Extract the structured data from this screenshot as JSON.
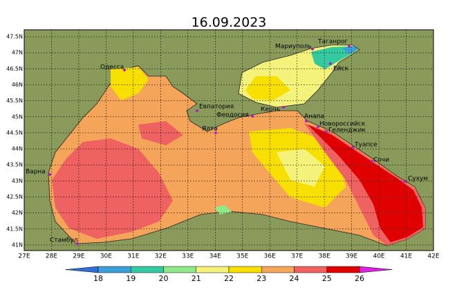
{
  "title": "16.09.2023",
  "lon_ticks": [
    {
      "value": 27,
      "label": "27E"
    },
    {
      "value": 28,
      "label": "28E"
    },
    {
      "value": 29,
      "label": "29E"
    },
    {
      "value": 30,
      "label": "30E"
    },
    {
      "value": 31,
      "label": "31E"
    },
    {
      "value": 32,
      "label": "32E"
    },
    {
      "value": 33,
      "label": "33E"
    },
    {
      "value": 34,
      "label": "34E"
    },
    {
      "value": 35,
      "label": "35E"
    },
    {
      "value": 36,
      "label": "36E"
    },
    {
      "value": 37,
      "label": "37E"
    },
    {
      "value": 38,
      "label": "38E"
    },
    {
      "value": 39,
      "label": "39E"
    },
    {
      "value": 40,
      "label": "40E"
    },
    {
      "value": 41,
      "label": "41E"
    },
    {
      "value": 42,
      "label": "42E"
    }
  ],
  "lat_ticks": [
    {
      "value": 41,
      "label": "41N"
    },
    {
      "value": 41.5,
      "label": "41.5N"
    },
    {
      "value": 42,
      "label": "42N"
    },
    {
      "value": 42.5,
      "label": "42.5N"
    },
    {
      "value": 43,
      "label": "43N"
    },
    {
      "value": 43.5,
      "label": "43.5N"
    },
    {
      "value": 44,
      "label": "44N"
    },
    {
      "value": 44.5,
      "label": "44.5N"
    },
    {
      "value": 45,
      "label": "45N"
    },
    {
      "value": 45.5,
      "label": "45.5N"
    },
    {
      "value": 46,
      "label": "46N"
    },
    {
      "value": 46.5,
      "label": "46.5N"
    },
    {
      "value": 47,
      "label": "47N"
    },
    {
      "value": 47.5,
      "label": "47.5N"
    }
  ],
  "cities": [
    "Одесса",
    "Мариуполь",
    "Таганрог",
    "Ейск",
    "Евпатория",
    "Феодосия",
    "Керчь",
    "Ялта",
    "Анапа",
    "Новороссийск",
    "Геленджик",
    "Туапсе",
    "Сочи",
    "Сухум",
    "Варна",
    "Стамбул"
  ],
  "legend": {
    "levels": [
      18,
      19,
      20,
      21,
      22,
      23,
      24,
      25,
      26
    ],
    "colors": [
      "#2f6fd6",
      "#3c9fd8",
      "#35c9a0",
      "#8fe88a",
      "#f4f27a",
      "#f7e000",
      "#f4a55a",
      "#ef6262",
      "#e00000",
      "#e020e0"
    ]
  }
}
